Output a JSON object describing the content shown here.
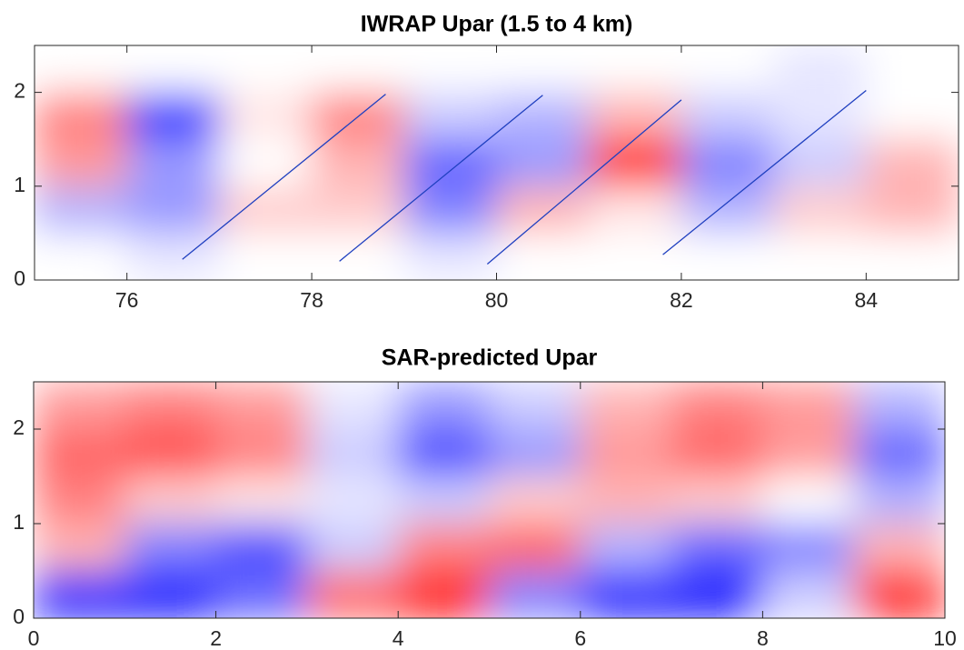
{
  "chart_data": [
    {
      "type": "heatmap",
      "title": "IWRAP Upar (1.5 to 4 km)",
      "xlim": [
        75,
        85
      ],
      "ylim": [
        0,
        2.5
      ],
      "xticks": [
        76,
        78,
        80,
        82,
        84
      ],
      "yticks": [
        0,
        1,
        2
      ],
      "clim": [
        -1,
        1
      ],
      "colormap": [
        "#0000ff",
        "#ffffff",
        "#ff0000"
      ],
      "z": [
        [
          0,
          0,
          0,
          0,
          0,
          0,
          0,
          0,
          -0.1,
          0
        ],
        [
          0.5,
          -0.8,
          0.1,
          0.5,
          -0.2,
          -0.3,
          0.3,
          -0.2,
          -0.1,
          0
        ],
        [
          0.4,
          -0.4,
          0,
          0.3,
          -0.6,
          -0.4,
          0.9,
          -0.5,
          -0.2,
          0.3
        ],
        [
          -0.3,
          -0.4,
          0.2,
          0.2,
          -0.5,
          0.3,
          0.1,
          -0.3,
          0.2,
          0.3
        ],
        [
          0,
          -0.1,
          0,
          0,
          -0.1,
          0,
          0,
          0,
          0,
          0
        ]
      ],
      "line_color": "#2040c0",
      "lines": [
        {
          "x": [
            76.6,
            78.8
          ],
          "y": [
            0.22,
            1.98
          ]
        },
        {
          "x": [
            78.3,
            80.5
          ],
          "y": [
            0.2,
            1.97
          ]
        },
        {
          "x": [
            79.9,
            82.0
          ],
          "y": [
            0.17,
            1.92
          ]
        },
        {
          "x": [
            81.8,
            84.0
          ],
          "y": [
            0.27,
            2.02
          ]
        }
      ]
    },
    {
      "type": "heatmap",
      "title": "SAR-predicted Upar",
      "xlim": [
        0,
        10
      ],
      "ylim": [
        0,
        2.5
      ],
      "xticks": [
        0,
        2,
        4,
        6,
        8,
        10
      ],
      "yticks": [
        0,
        1,
        2
      ],
      "clim": [
        -1,
        1
      ],
      "colormap": [
        "#0000ff",
        "#ffffff",
        "#ff0000"
      ],
      "z": [
        [
          0.4,
          0.5,
          0.4,
          -0.1,
          -0.4,
          -0.2,
          0.3,
          0.5,
          0.4,
          -0.3
        ],
        [
          0.6,
          0.7,
          0.5,
          -0.2,
          -0.7,
          -0.4,
          0.4,
          0.6,
          0.4,
          -0.6
        ],
        [
          0.5,
          0.2,
          0.1,
          -0.1,
          -0.2,
          0.2,
          0.3,
          0.2,
          0,
          -0.3
        ],
        [
          0.3,
          -0.5,
          -0.7,
          -0.2,
          0.5,
          0.6,
          -0.3,
          -0.6,
          -0.5,
          0.3
        ],
        [
          -0.9,
          -0.9,
          -0.6,
          0.6,
          0.9,
          -0.5,
          -0.9,
          -0.9,
          -0.2,
          0.9
        ]
      ]
    }
  ]
}
